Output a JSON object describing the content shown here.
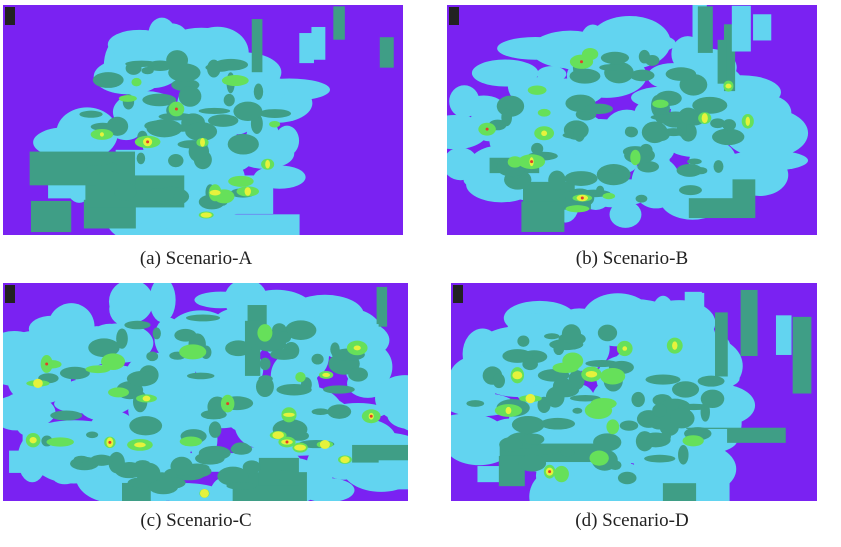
{
  "panels": [
    {
      "caption": "(a) Scenario-A"
    },
    {
      "caption": "(b) Scenario-B"
    },
    {
      "caption": "(c) Scenario-C"
    },
    {
      "caption": "(d) Scenario-D"
    }
  ]
}
